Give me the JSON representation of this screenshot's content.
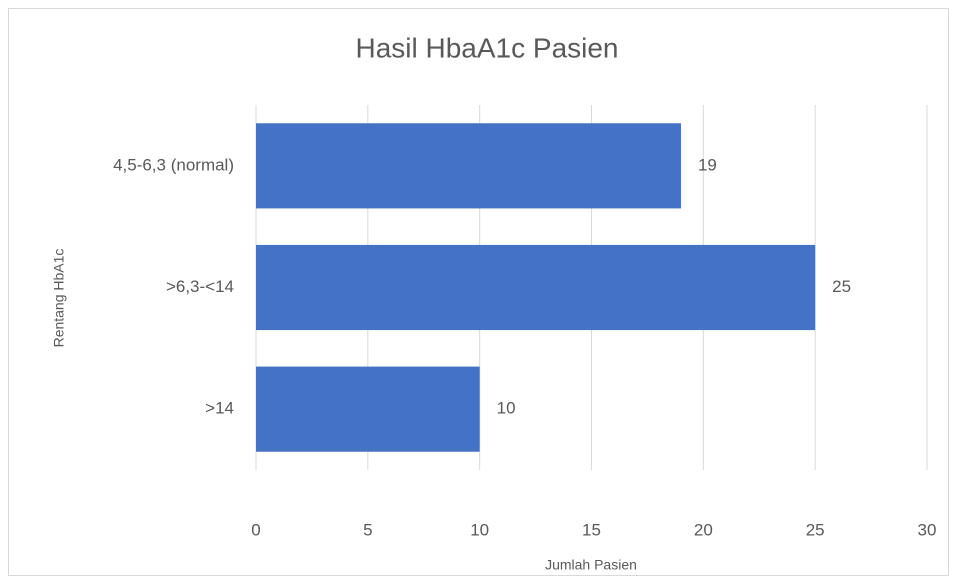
{
  "chart_data": {
    "type": "barh",
    "title": "Hasil HbaA1c Pasien",
    "x_label": "Jumlah Pasien",
    "y_label": "Rentang HbA1c",
    "categories": [
      "4,5-6,3 (normal)",
      ">6,3-<14",
      ">14"
    ],
    "values": [
      19,
      25,
      10
    ],
    "color": "#4472c4",
    "xlim": [
      0,
      30
    ],
    "xticks": [
      0,
      5,
      10,
      15,
      20,
      25,
      30
    ],
    "grid": true
  }
}
